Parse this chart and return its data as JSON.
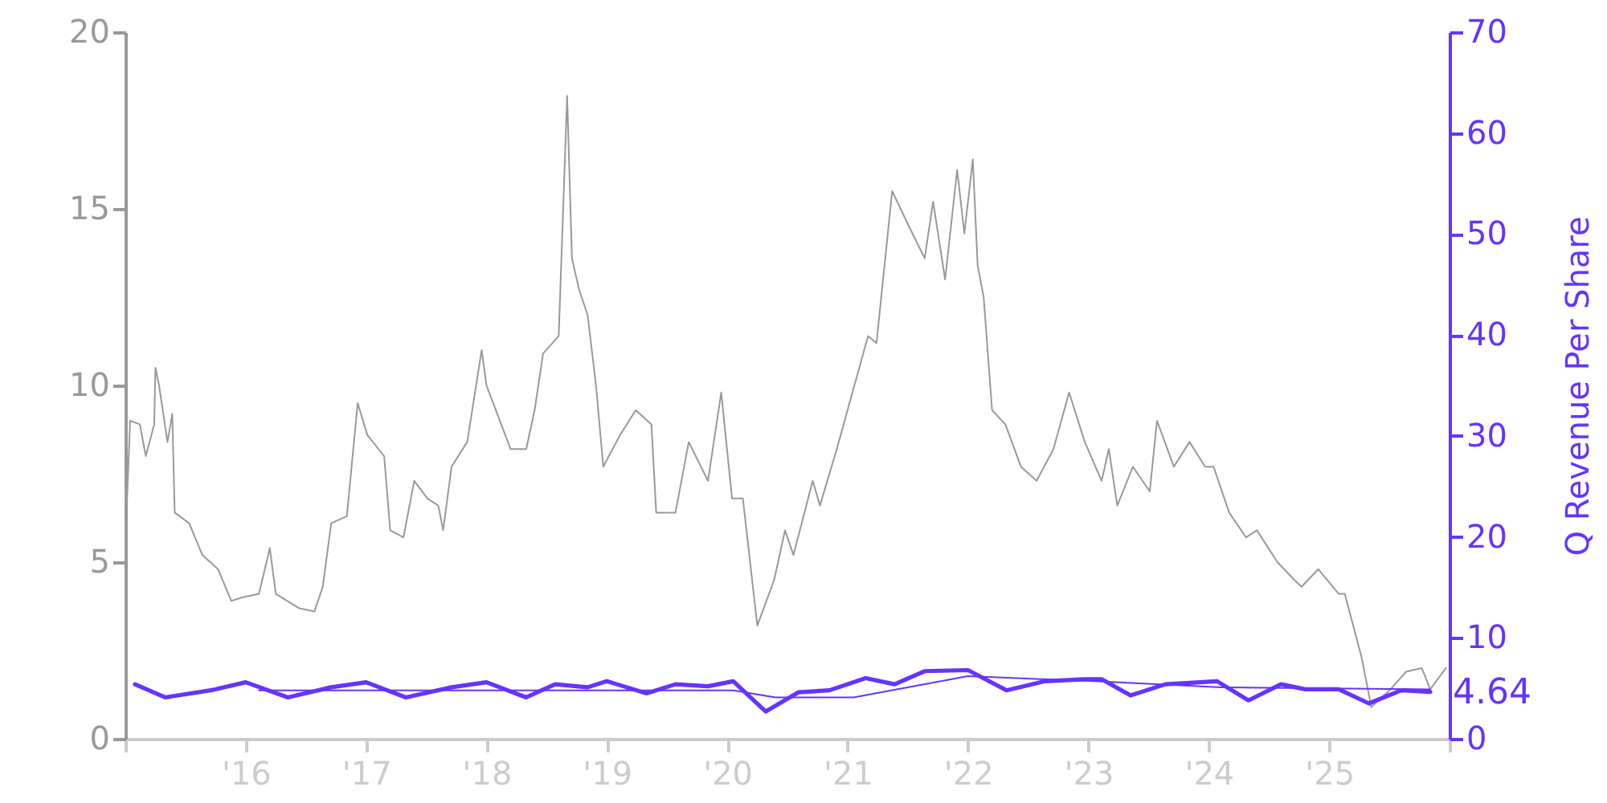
{
  "chart_data": {
    "type": "line",
    "ylabel": null,
    "y2label": "Q Revenue Per Share",
    "xlim": [
      2015.0,
      2026.0
    ],
    "xticks": [
      {
        "value": 2015,
        "label": null
      },
      {
        "value": 2016,
        "label": "'16"
      },
      {
        "value": 2017,
        "label": "'17"
      },
      {
        "value": 2018,
        "label": "'18"
      },
      {
        "value": 2019,
        "label": "'19"
      },
      {
        "value": 2020,
        "label": "'20"
      },
      {
        "value": 2021,
        "label": "'21"
      },
      {
        "value": 2022,
        "label": "'22"
      },
      {
        "value": 2023,
        "label": "'23"
      },
      {
        "value": 2024,
        "label": "'24"
      },
      {
        "value": 2025,
        "label": "'25"
      },
      {
        "value": 2026,
        "label": null
      }
    ],
    "ylim": [
      0,
      20
    ],
    "yticks": [
      0,
      5,
      10,
      15,
      20
    ],
    "y2lim": [
      0,
      70
    ],
    "y2ticks": [
      0,
      10,
      20,
      30,
      40,
      50,
      60,
      70
    ],
    "grid": false,
    "marker": "none",
    "series": [
      {
        "color": "#999999",
        "x": [
          2015.01,
          2015.04,
          2015.12,
          2015.17,
          2015.24,
          2015.25,
          2015.28,
          2015.35,
          2015.39,
          2015.41,
          2015.53,
          2015.64,
          2015.77,
          2015.88,
          2015.97,
          2016.11,
          2016.2,
          2016.25,
          2016.44,
          2016.57,
          2016.64,
          2016.71,
          2016.84,
          2016.93,
          2017.01,
          2017.15,
          2017.2,
          2017.31,
          2017.4,
          2017.51,
          2017.6,
          2017.64,
          2017.71,
          2017.84,
          2017.96,
          2018.0,
          2018.2,
          2018.33,
          2018.4,
          2018.47,
          2018.6,
          2018.67,
          2018.71,
          2018.77,
          2018.84,
          2018.91,
          2018.97,
          2019.11,
          2019.24,
          2019.37,
          2019.41,
          2019.57,
          2019.68,
          2019.84,
          2019.95,
          2020.04,
          2020.13,
          2020.25,
          2020.39,
          2020.48,
          2020.55,
          2020.71,
          2020.77,
          2020.91,
          2021.04,
          2021.17,
          2021.24,
          2021.37,
          2021.51,
          2021.64,
          2021.71,
          2021.81,
          2021.91,
          2021.97,
          2022.04,
          2022.08,
          2022.13,
          2022.2,
          2022.31,
          2022.44,
          2022.57,
          2022.71,
          2022.84,
          2022.97,
          2023.11,
          2023.17,
          2023.24,
          2023.37,
          2023.51,
          2023.57,
          2023.71,
          2023.84,
          2023.97,
          2024.04,
          2024.17,
          2024.31,
          2024.4,
          2024.57,
          2024.71,
          2024.77,
          2024.91,
          2025.08,
          2025.13,
          2025.27,
          2025.35,
          2025.51,
          2025.64,
          2025.77,
          2025.84,
          2025.97
        ],
        "values": [
          6.4,
          9.0,
          8.9,
          8.0,
          8.9,
          10.5,
          10.0,
          8.4,
          9.2,
          6.4,
          6.1,
          5.2,
          4.8,
          3.9,
          4.0,
          4.1,
          5.4,
          4.1,
          3.7,
          3.6,
          4.3,
          6.1,
          6.3,
          9.5,
          8.6,
          8.0,
          5.9,
          5.7,
          7.3,
          6.8,
          6.6,
          5.9,
          7.7,
          8.4,
          11.0,
          10.0,
          8.2,
          8.2,
          9.3,
          10.9,
          11.4,
          18.2,
          13.6,
          12.7,
          12.0,
          10.0,
          7.7,
          8.6,
          9.3,
          8.9,
          6.4,
          6.4,
          8.4,
          7.3,
          9.8,
          6.8,
          6.8,
          3.2,
          4.5,
          5.9,
          5.2,
          7.3,
          6.6,
          8.2,
          9.8,
          11.4,
          11.2,
          15.5,
          14.5,
          13.6,
          15.2,
          13.0,
          16.1,
          14.3,
          16.4,
          13.4,
          12.5,
          9.3,
          8.9,
          7.7,
          7.3,
          8.2,
          9.8,
          8.4,
          7.3,
          8.2,
          6.6,
          7.7,
          7.0,
          9.0,
          7.7,
          8.4,
          7.7,
          7.7,
          6.4,
          5.7,
          5.9,
          5.0,
          4.5,
          4.3,
          4.8,
          4.1,
          4.1,
          2.3,
          0.9,
          1.4,
          1.9,
          2.0,
          1.4,
          2.0
        ]
      },
      {
        "color": "#6633ff",
        "axis": "y2",
        "x": [
          2015.08,
          2015.33,
          2015.71,
          2016.0,
          2016.35,
          2016.71,
          2017.0,
          2017.33,
          2017.71,
          2018.0,
          2018.33,
          2018.57,
          2018.84,
          2019.0,
          2019.33,
          2019.57,
          2019.84,
          2020.05,
          2020.32,
          2020.59,
          2020.85,
          2021.15,
          2021.39,
          2021.64,
          2022.0,
          2022.32,
          2022.64,
          2022.97,
          2023.11,
          2023.35,
          2023.64,
          2024.07,
          2024.33,
          2024.6,
          2024.8,
          2025.08,
          2025.33,
          2025.6,
          2025.84
        ],
        "values": [
          5.4,
          4.1,
          4.8,
          5.6,
          4.1,
          5.1,
          5.6,
          4.1,
          5.1,
          5.6,
          4.1,
          5.4,
          5.1,
          5.7,
          4.5,
          5.4,
          5.2,
          5.7,
          2.7,
          4.6,
          4.8,
          6.0,
          5.4,
          6.7,
          6.8,
          4.8,
          5.7,
          5.9,
          5.9,
          4.3,
          5.4,
          5.7,
          3.8,
          5.4,
          4.9,
          4.9,
          3.5,
          4.8,
          4.64
        ],
        "value_labels": [
          null,
          null,
          null,
          null,
          null,
          null,
          null,
          null,
          null,
          null,
          null,
          null,
          null,
          null,
          null,
          null,
          null,
          null,
          null,
          null,
          null,
          null,
          null,
          null,
          null,
          null,
          null,
          null,
          null,
          null,
          null,
          null,
          null,
          null,
          null,
          null,
          null,
          null,
          "4.64"
        ]
      },
      {
        "color": "#6633ff",
        "axis": "y2",
        "x": [
          2016.11,
          2019.0,
          2020.05,
          2020.4,
          2021.05,
          2022.0,
          2023.05,
          2024.11,
          2025.84
        ],
        "values": [
          4.8,
          4.8,
          4.8,
          4.1,
          4.1,
          6.2,
          5.7,
          5.1,
          4.9
        ]
      }
    ]
  }
}
